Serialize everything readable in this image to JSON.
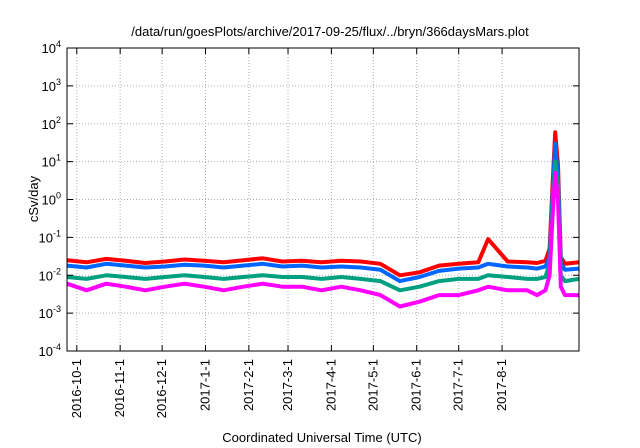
{
  "chart_data": {
    "type": "line",
    "title": "/data/run/goesPlots/archive/2017-09-25/flux/../bryn/366daysMars.plot",
    "xlabel": "Coordinated Universal Time (UTC)",
    "ylabel": "cSv/day",
    "yscale": "log",
    "ylim": [
      0.0001,
      10000
    ],
    "xlim": [
      "2016-09-24",
      "2017-09-25"
    ],
    "grid": true,
    "x_ticks": [
      {
        "date": "2016-10-01",
        "label": "2016-10-1"
      },
      {
        "date": "2016-11-01",
        "label": "2016-11-1"
      },
      {
        "date": "2016-12-01",
        "label": "2016-12-1"
      },
      {
        "date": "2017-01-01",
        "label": "2017-1-1"
      },
      {
        "date": "2017-02-01",
        "label": "2017-2-1"
      },
      {
        "date": "2017-03-01",
        "label": "2017-3-1"
      },
      {
        "date": "2017-04-01",
        "label": "2017-4-1"
      },
      {
        "date": "2017-05-01",
        "label": "2017-5-1"
      },
      {
        "date": "2017-06-01",
        "label": "2017-6-1"
      },
      {
        "date": "2017-07-01",
        "label": "2017-7-1"
      },
      {
        "date": "2017-08-01",
        "label": "2017-8-1"
      }
    ],
    "y_ticks": [
      {
        "value": 0.0001,
        "base": "10",
        "exp": "-4"
      },
      {
        "value": 0.001,
        "base": "10",
        "exp": "-3"
      },
      {
        "value": 0.01,
        "base": "10",
        "exp": "-2"
      },
      {
        "value": 0.1,
        "base": "10",
        "exp": "-1"
      },
      {
        "value": 1,
        "base": "10",
        "exp": "0"
      },
      {
        "value": 10,
        "base": "10",
        "exp": "1"
      },
      {
        "value": 100,
        "base": "10",
        "exp": "2"
      },
      {
        "value": 1000,
        "base": "10",
        "exp": "3"
      },
      {
        "value": 10000,
        "base": "10",
        "exp": "4"
      }
    ],
    "x": [
      "2016-09-24",
      "2016-10-08",
      "2016-10-22",
      "2016-11-05",
      "2016-11-19",
      "2016-12-03",
      "2016-12-17",
      "2016-12-31",
      "2017-01-14",
      "2017-01-28",
      "2017-02-11",
      "2017-02-25",
      "2017-03-11",
      "2017-03-25",
      "2017-04-08",
      "2017-04-22",
      "2017-05-06",
      "2017-05-20",
      "2017-06-03",
      "2017-06-17",
      "2017-07-01",
      "2017-07-15",
      "2017-07-22",
      "2017-08-05",
      "2017-08-19",
      "2017-08-26",
      "2017-09-01",
      "2017-09-04",
      "2017-09-06",
      "2017-09-08",
      "2017-09-10",
      "2017-09-12",
      "2017-09-15",
      "2017-09-25"
    ],
    "series": [
      {
        "color": "#ff0000",
        "values": [
          0.025,
          0.022,
          0.027,
          0.024,
          0.021,
          0.023,
          0.026,
          0.024,
          0.022,
          0.025,
          0.028,
          0.023,
          0.024,
          0.022,
          0.024,
          0.023,
          0.02,
          0.01,
          0.012,
          0.018,
          0.02,
          0.022,
          0.09,
          0.023,
          0.022,
          0.021,
          0.024,
          0.05,
          2.0,
          60,
          8,
          0.03,
          0.02,
          0.022
        ]
      },
      {
        "color": "#0066ff",
        "values": [
          0.018,
          0.016,
          0.02,
          0.018,
          0.016,
          0.017,
          0.019,
          0.018,
          0.016,
          0.018,
          0.02,
          0.017,
          0.018,
          0.016,
          0.017,
          0.016,
          0.014,
          0.007,
          0.009,
          0.013,
          0.015,
          0.016,
          0.02,
          0.017,
          0.016,
          0.015,
          0.017,
          0.03,
          1.0,
          30,
          4,
          0.02,
          0.014,
          0.015
        ]
      },
      {
        "color": "#00a080",
        "values": [
          0.009,
          0.008,
          0.01,
          0.009,
          0.008,
          0.009,
          0.01,
          0.009,
          0.008,
          0.009,
          0.01,
          0.009,
          0.009,
          0.008,
          0.009,
          0.008,
          0.007,
          0.004,
          0.005,
          0.007,
          0.008,
          0.008,
          0.01,
          0.009,
          0.008,
          0.008,
          0.009,
          0.02,
          0.6,
          10,
          2,
          0.01,
          0.007,
          0.008
        ]
      },
      {
        "color": "#ff00ff",
        "values": [
          0.006,
          0.004,
          0.006,
          0.005,
          0.004,
          0.005,
          0.006,
          0.005,
          0.004,
          0.005,
          0.006,
          0.005,
          0.005,
          0.004,
          0.005,
          0.004,
          0.003,
          0.0015,
          0.002,
          0.003,
          0.003,
          0.004,
          0.005,
          0.004,
          0.004,
          0.003,
          0.004,
          0.01,
          0.3,
          5,
          1,
          0.005,
          0.003,
          0.003
        ]
      }
    ]
  }
}
